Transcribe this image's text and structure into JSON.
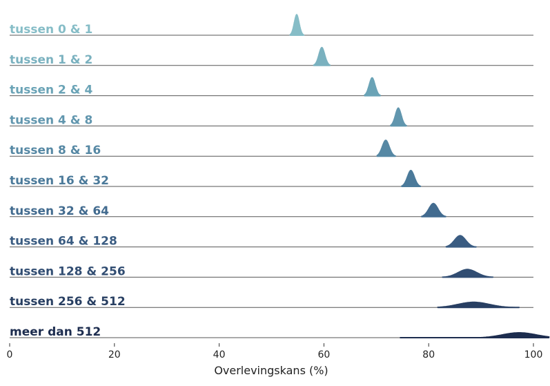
{
  "chart_data": {
    "type": "ridgeline",
    "title": "",
    "xlabel": "Overlevingskans (%)",
    "ylabel": "",
    "xlim": [
      0,
      103
    ],
    "xticks": [
      0,
      20,
      40,
      60,
      80,
      100
    ],
    "grid": false,
    "legend": "none",
    "series": [
      {
        "name": "tussen 0 & 1",
        "mean": 54.8,
        "sd": 0.5,
        "min": 53.5,
        "max": 56.2,
        "color": "#86bdc7"
      },
      {
        "name": "tussen 1 & 2",
        "mean": 59.6,
        "sd": 0.6,
        "min": 58.0,
        "max": 61.2,
        "color": "#7ab1bf"
      },
      {
        "name": "tussen 2 & 4",
        "mean": 69.2,
        "sd": 0.6,
        "min": 67.7,
        "max": 70.8,
        "color": "#6aa3b6"
      },
      {
        "name": "tussen 4 & 8",
        "mean": 74.2,
        "sd": 0.6,
        "min": 72.7,
        "max": 75.8,
        "color": "#6196ae"
      },
      {
        "name": "tussen 8 & 16",
        "mean": 71.8,
        "sd": 0.7,
        "min": 70.1,
        "max": 73.7,
        "color": "#5688a4"
      },
      {
        "name": "tussen 16 & 32",
        "mean": 76.6,
        "sd": 0.7,
        "min": 74.8,
        "max": 78.5,
        "color": "#4b7a9a"
      },
      {
        "name": "tussen 32 & 64",
        "mean": 80.9,
        "sd": 0.9,
        "min": 78.6,
        "max": 83.3,
        "color": "#426b8f"
      },
      {
        "name": "tussen 64 & 128",
        "mean": 86.0,
        "sd": 1.1,
        "min": 83.3,
        "max": 89.1,
        "color": "#3a5c82"
      },
      {
        "name": "tussen 128 & 256",
        "mean": 87.4,
        "sd": 1.8,
        "min": 82.6,
        "max": 92.3,
        "color": "#314d72"
      },
      {
        "name": "tussen 256 & 512",
        "mean": 88.6,
        "sd": 3.0,
        "min": 81.7,
        "max": 97.3,
        "color": "#283f62"
      },
      {
        "name": "meer dan 512",
        "mean": 97.3,
        "sd": 3.2,
        "min": 74.5,
        "max": 103.0,
        "color": "#1d2d4f"
      }
    ]
  }
}
